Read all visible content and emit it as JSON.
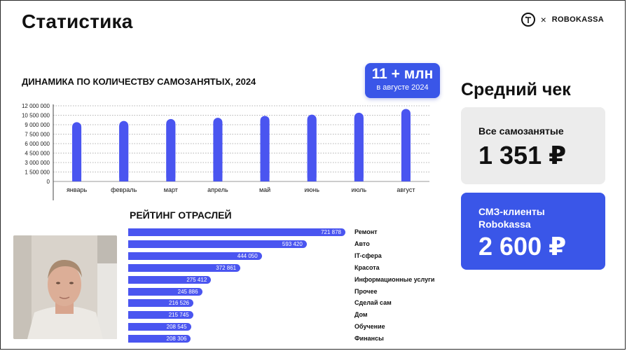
{
  "slide": {
    "title": "Статистика",
    "brand": {
      "separator": "×",
      "name": "ROBOKASSA"
    }
  },
  "dynamics": {
    "title": "ДИНАМИКА ПО КОЛИЧЕСТВУ САМОЗАНЯТЫХ, 2024",
    "badge_big": "11 + млн",
    "badge_small": "в августе 2024"
  },
  "chart_data": [
    {
      "type": "bar",
      "categories": [
        "январь",
        "февраль",
        "март",
        "апрель",
        "май",
        "июнь",
        "июль",
        "август"
      ],
      "values": [
        9400000,
        9600000,
        9900000,
        10100000,
        10400000,
        10600000,
        10900000,
        11500000
      ],
      "ylim": [
        0,
        12000000
      ],
      "yticks": [
        0,
        1500000,
        3000000,
        4500000,
        6000000,
        7500000,
        9000000,
        10500000,
        12000000
      ],
      "ytick_labels": [
        "0",
        "1 500 000",
        "3 000 000",
        "4 500 000",
        "6 000 000",
        "7 500 000",
        "9 000 000",
        "10 500 000",
        "12 000 000"
      ],
      "grid": true,
      "color": "#4a55f0"
    },
    {
      "type": "bar",
      "orientation": "horizontal",
      "title": "РЕЙТИНГ ОТРАСЛЕЙ",
      "categories": [
        "Ремонт",
        "Авто",
        "IT-сфера",
        "Красота",
        "Информационные услуги",
        "Прочее",
        "Сделай сам",
        "Дом",
        "Обучение",
        "Финансы"
      ],
      "values": [
        721878,
        593420,
        444050,
        372861,
        275412,
        245886,
        216526,
        215745,
        208545,
        208306
      ],
      "value_labels": [
        "721 878",
        "593 420",
        "444 050",
        "372 861",
        "275 412",
        "245 886",
        "216 526",
        "215 745",
        "208 545",
        "208 306"
      ],
      "color": "#4a55f0"
    }
  ],
  "average_check": {
    "title": "Средний чек",
    "all": {
      "label": "Все самозанятые",
      "value": "1 351 ₽"
    },
    "robokassa": {
      "label_line1": "СМЗ-клиенты",
      "label_line2": "Robokassa",
      "value": "2 600 ₽"
    }
  },
  "colors": {
    "accent": "#3a56e8",
    "bar": "#4a55f0",
    "card_grey": "#ececec"
  }
}
